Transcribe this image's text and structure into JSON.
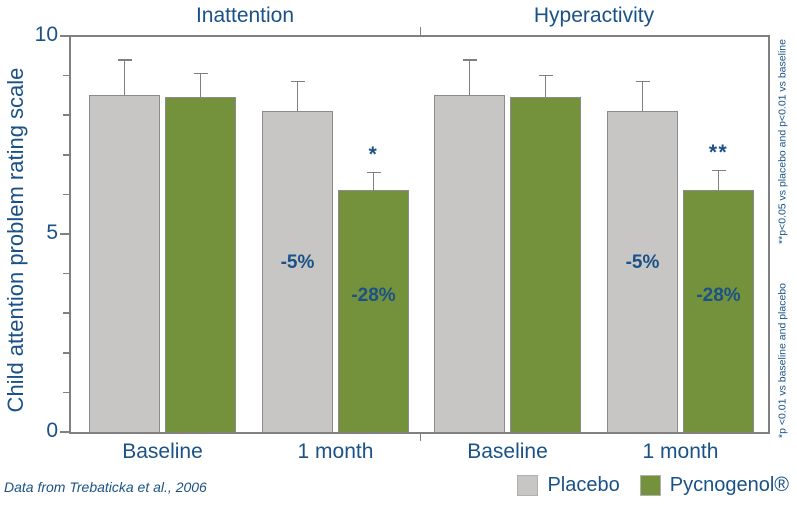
{
  "figure": {
    "footnote": "Data from Trebaticka et al., 2006",
    "annotation_top": "**p<0.05 vs placebo and p<0.01 vs baseline",
    "annotation_bottom": "*p <0.01 vs baseline and placebo",
    "colors": {
      "text_blue": "#1a5288",
      "axis_gray": "#808080",
      "error_gray": "#7f7f7f",
      "bar_border": "#8b8b8b",
      "placebo_gray": "#c7c6c4",
      "pycnogenol_green": "#74923b"
    },
    "legend": [
      {
        "label": "Placebo",
        "color": "#c7c6c4"
      },
      {
        "label": "Pycnogenol®",
        "color": "#74923b"
      }
    ]
  },
  "chart_data": {
    "type": "bar",
    "title": "",
    "ylabel": "Child attention problem rating scale",
    "xlabel": "",
    "ylim": [
      0,
      10
    ],
    "y_ticks_major": [
      10,
      5,
      0
    ],
    "y_tick_minor_step": 1,
    "grid": false,
    "legend_position": "bottom-right",
    "panels": [
      {
        "title": "Inattention",
        "categories": [
          "Baseline",
          "1 month"
        ],
        "series": [
          {
            "name": "Placebo",
            "color": "#c7c6c4",
            "values": [
              8.5,
              8.1
            ],
            "errors_up": [
              0.9,
              0.75
            ]
          },
          {
            "name": "Pycnogenol®",
            "color": "#74923b",
            "values": [
              8.45,
              6.1
            ],
            "errors_up": [
              0.6,
              0.45
            ]
          }
        ],
        "bar_labels": [
          {
            "series": 0,
            "category": 1,
            "text": "-5%",
            "y": 4.25
          },
          {
            "series": 1,
            "category": 1,
            "text": "-28%",
            "y": 3.4
          }
        ],
        "significance": [
          {
            "series": 1,
            "category": 1,
            "text": "*"
          }
        ]
      },
      {
        "title": "Hyperactivity",
        "categories": [
          "Baseline",
          "1 month"
        ],
        "series": [
          {
            "name": "Placebo",
            "color": "#c7c6c4",
            "values": [
              8.5,
              8.1
            ],
            "errors_up": [
              0.9,
              0.75
            ]
          },
          {
            "name": "Pycnogenol®",
            "color": "#74923b",
            "values": [
              8.45,
              6.1
            ],
            "errors_up": [
              0.55,
              0.5
            ]
          }
        ],
        "bar_labels": [
          {
            "series": 0,
            "category": 1,
            "text": "-5%",
            "y": 4.25
          },
          {
            "series": 1,
            "category": 1,
            "text": "-28%",
            "y": 3.4
          }
        ],
        "significance": [
          {
            "series": 1,
            "category": 1,
            "text": "**"
          }
        ]
      }
    ]
  }
}
